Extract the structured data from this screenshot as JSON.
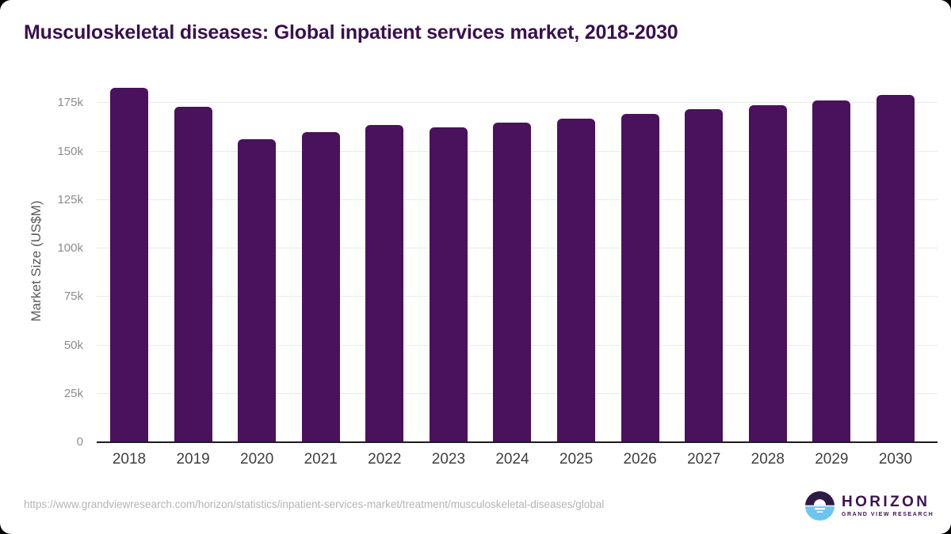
{
  "title": "Musculoskeletal diseases: Global inpatient services market, 2018-2030",
  "chart_data": {
    "type": "bar",
    "title": "Musculoskeletal diseases: Global inpatient services market, 2018-2030",
    "categories": [
      "2018",
      "2019",
      "2020",
      "2021",
      "2022",
      "2023",
      "2024",
      "2025",
      "2026",
      "2027",
      "2028",
      "2029",
      "2030"
    ],
    "values": [
      182900,
      172900,
      156400,
      160000,
      163700,
      162300,
      165100,
      166800,
      169500,
      171900,
      173900,
      176300,
      179300
    ],
    "unit": "US$M",
    "xlabel": "",
    "ylabel": "Market Size (US$M)",
    "ylim": [
      0,
      187500
    ],
    "y_ticks": [
      "0",
      "25k",
      "50k",
      "75k",
      "100k",
      "125k",
      "150k",
      "175k"
    ],
    "y_tick_step": 25000,
    "grid": "horizontal",
    "legend": "none",
    "bar_color": "#4a115c"
  },
  "footer": {
    "source_url": "https://www.grandviewresearch.com/horizon/statistics/inpatient-services-market/treatment/musculoskeletal-diseases/global",
    "logo": {
      "name": "HORIZON",
      "subtitle": "GRAND VIEW RESEARCH",
      "purple": "#2f1945",
      "blue": "#6cc5f1"
    }
  }
}
